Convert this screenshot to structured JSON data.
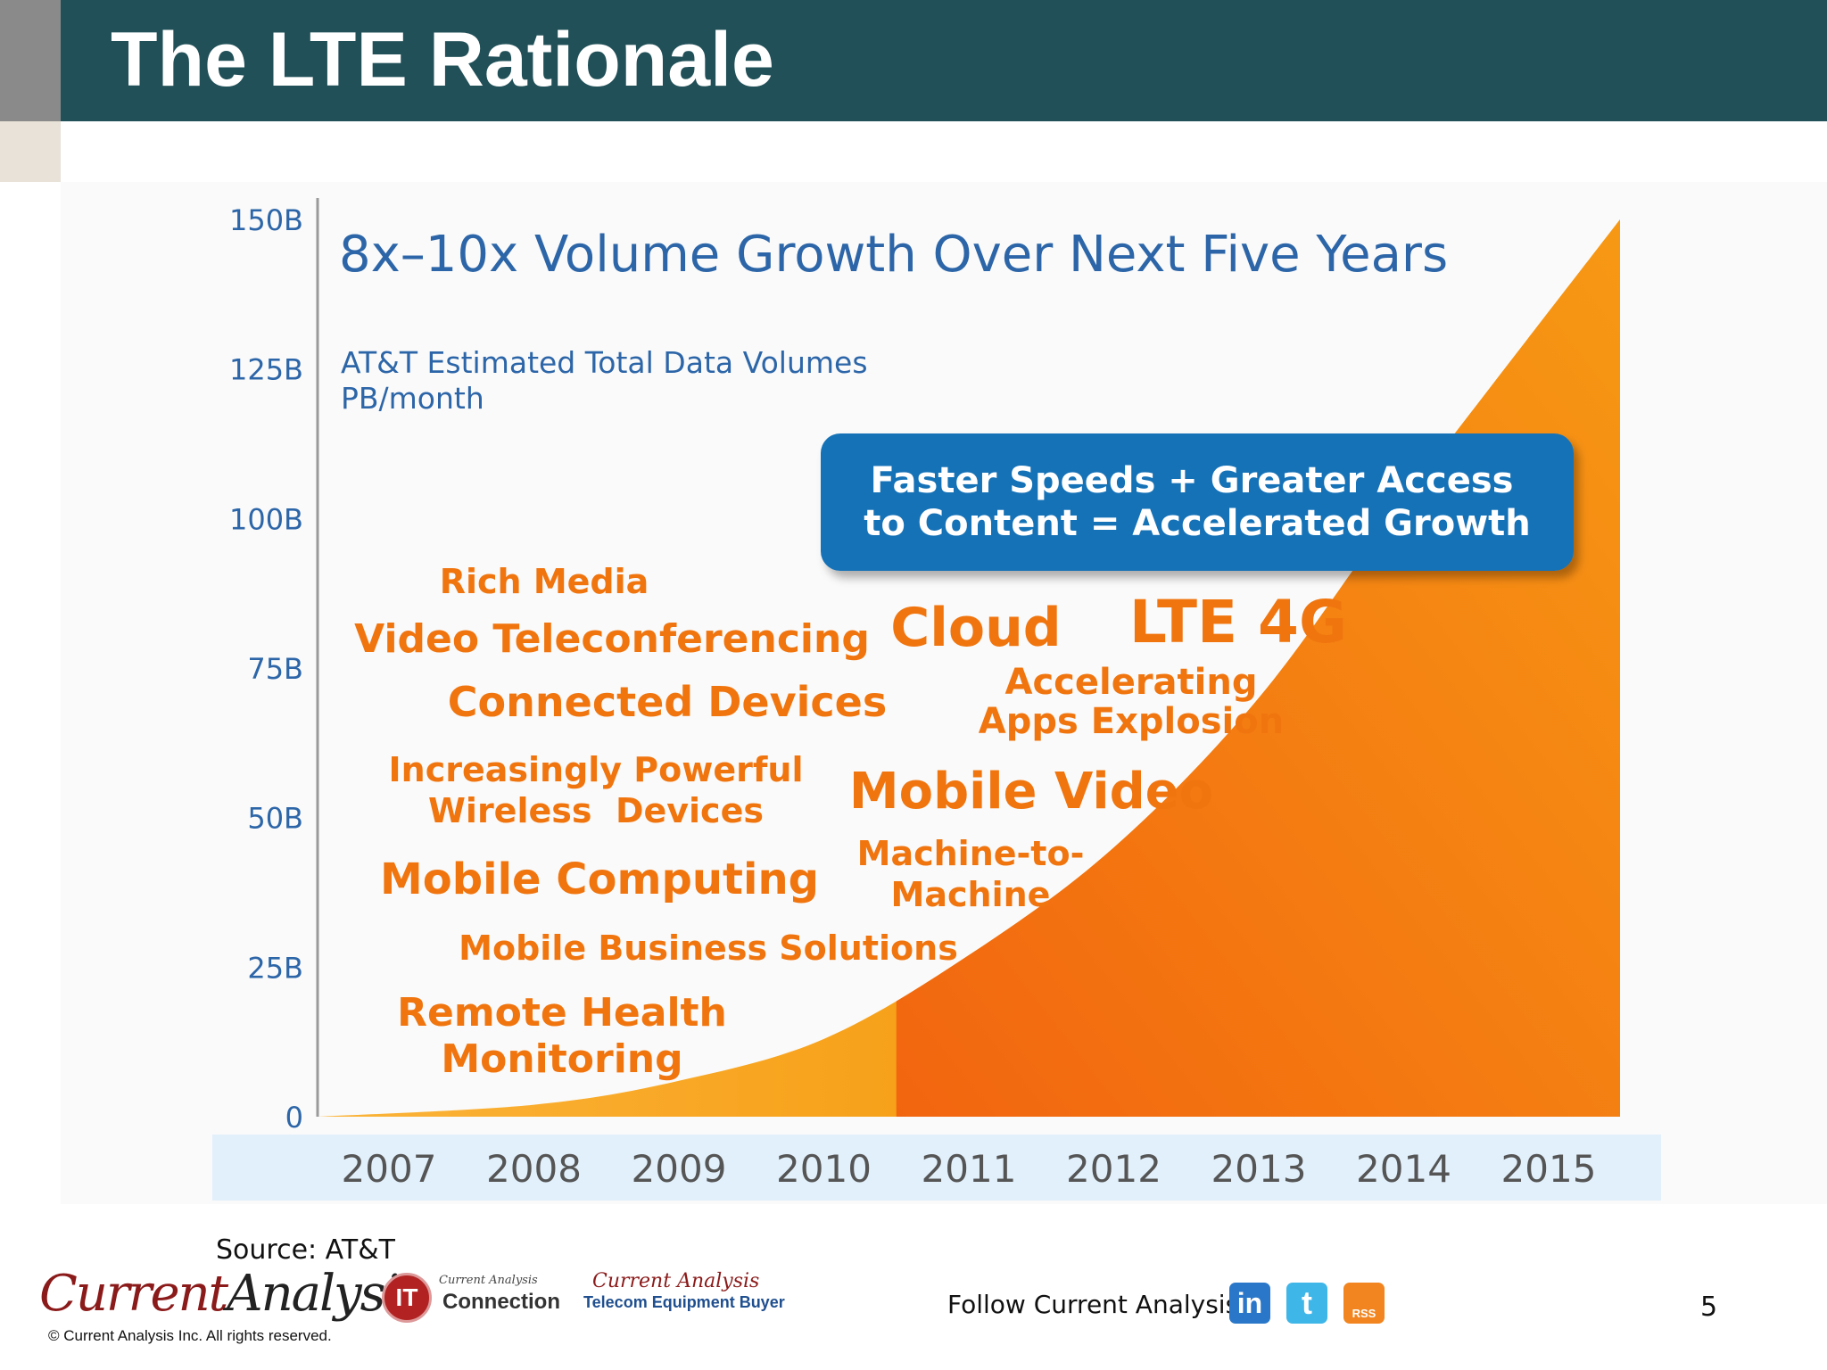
{
  "slide": {
    "title": "The LTE Rationale",
    "source": "Source: AT&T",
    "page_number": "5"
  },
  "footer": {
    "logo_part1": "Current",
    "logo_part2": "Analysis",
    "copyright": "© Current Analysis Inc. All rights reserved.",
    "connection_logo_small": "Current Analysis",
    "connection_logo_big": "Connection",
    "connection_logo_mark": "IT",
    "teb_logo_small": "Current Analysis",
    "teb_logo_big": "Telecom Equipment Buyer",
    "follow_text": "Follow Current Analysis",
    "social": {
      "linkedin": "in",
      "twitter": "t",
      "rss": "RSS"
    }
  },
  "chart_data": {
    "type": "area",
    "title": "8x–10x Volume Growth Over Next Five Years",
    "subtitle_line1": "AT&T Estimated Total Data Volumes",
    "subtitle_line2": "PB/month",
    "x": [
      "2007",
      "2008",
      "2009",
      "2010",
      "2011",
      "2012",
      "2013",
      "2014",
      "2015"
    ],
    "values": [
      0,
      2,
      6,
      13,
      27,
      45,
      70,
      103,
      150
    ],
    "y_ticks": [
      "0",
      "25B",
      "50B",
      "75B",
      "100B",
      "125B",
      "150B"
    ],
    "ylim": [
      0,
      150
    ],
    "grid": false,
    "colors": {
      "area_light": "#f8a800",
      "area_dark": "#f26a10",
      "axis_text": "#2d66a8",
      "label_orange": "#f0750f",
      "callout_bg": "#1272b7",
      "xaxis_band": "#e2f0fb"
    },
    "callout": {
      "line1": "Faster Speeds + Greater Access",
      "line2": "to Content = Accelerated Growth"
    },
    "annotations": {
      "rich_media": "Rich Media",
      "video_teleconferencing": "Video Teleconferencing",
      "connected_devices": "Connected Devices",
      "powerful_line1": "Increasingly Powerful",
      "powerful_line2": "Wireless  Devices",
      "mobile_computing": "Mobile Computing",
      "mobile_business": "Mobile Business Solutions",
      "remote_line1": "Remote Health",
      "remote_line2": "Monitoring",
      "cloud": "Cloud",
      "lte": "LTE 4G",
      "accelerating_line1": "Accelerating",
      "accelerating_line2": "Apps Explosion",
      "mobile_video": "Mobile Video",
      "m2m_line1": "Machine-to-",
      "m2m_line2": "Machine"
    }
  }
}
